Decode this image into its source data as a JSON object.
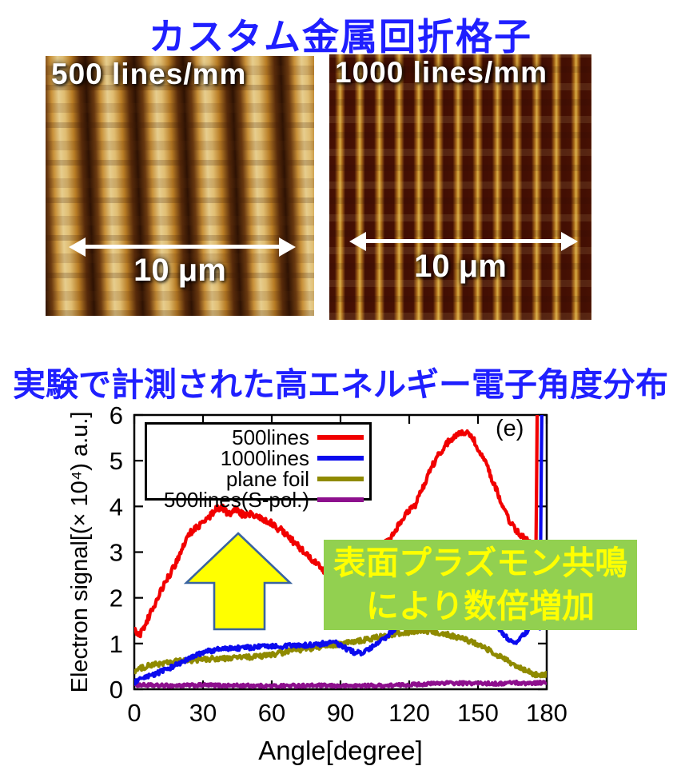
{
  "section1": {
    "title": "カスタム金属回折格子",
    "title_color": "#1f1fff"
  },
  "afm_images": [
    {
      "label": "500 lines/mm",
      "scale_label": "10 μm"
    },
    {
      "label": "1000 lines/mm",
      "scale_label": "10 μm"
    }
  ],
  "section2": {
    "title": "実験で計測された高エネルギー電子角度分布"
  },
  "chart_data": {
    "type": "line",
    "xlabel": "Angle[degree]",
    "ylabel": "Electron signal[(× 10⁴) a.u.]",
    "xlim": [
      0,
      180
    ],
    "ylim": [
      0,
      6
    ],
    "x_ticks": [
      0,
      30,
      60,
      90,
      120,
      150,
      180
    ],
    "y_ticks": [
      0,
      1,
      2,
      3,
      4,
      5,
      6
    ],
    "panel_label": "(e)",
    "legend_position": "top-left",
    "grid": false,
    "series": [
      {
        "name": "500lines",
        "color": "#f10000",
        "noise": 0.07,
        "points": [
          [
            0,
            1.3
          ],
          [
            2,
            1.17
          ],
          [
            4,
            1.32
          ],
          [
            6,
            1.55
          ],
          [
            8,
            1.76
          ],
          [
            10,
            1.97
          ],
          [
            12,
            2.18
          ],
          [
            14,
            2.38
          ],
          [
            16,
            2.56
          ],
          [
            18,
            2.74
          ],
          [
            20,
            2.97
          ],
          [
            22,
            3.2
          ],
          [
            24,
            3.4
          ],
          [
            26,
            3.5
          ],
          [
            28,
            3.56
          ],
          [
            30,
            3.63
          ],
          [
            32,
            3.73
          ],
          [
            34,
            3.84
          ],
          [
            36,
            3.95
          ],
          [
            38,
            4.0
          ],
          [
            40,
            3.88
          ],
          [
            42,
            3.86
          ],
          [
            44,
            3.93
          ],
          [
            46,
            3.88
          ],
          [
            48,
            3.79
          ],
          [
            50,
            3.83
          ],
          [
            52,
            3.81
          ],
          [
            54,
            3.79
          ],
          [
            56,
            3.73
          ],
          [
            58,
            3.69
          ],
          [
            60,
            3.64
          ],
          [
            62,
            3.54
          ],
          [
            64,
            3.49
          ],
          [
            66,
            3.4
          ],
          [
            68,
            3.3
          ],
          [
            70,
            3.2
          ],
          [
            72,
            3.1
          ],
          [
            74,
            3.0
          ],
          [
            76,
            2.9
          ],
          [
            78,
            2.8
          ],
          [
            80,
            2.72
          ],
          [
            82,
            2.62
          ],
          [
            84,
            2.54
          ],
          [
            86,
            2.47
          ],
          [
            88,
            2.43
          ],
          [
            90,
            2.48
          ],
          [
            92,
            2.58
          ],
          [
            94,
            2.68
          ],
          [
            96,
            2.78
          ],
          [
            98,
            2.86
          ],
          [
            100,
            2.94
          ],
          [
            102,
            3.0
          ],
          [
            104,
            3.05
          ],
          [
            106,
            3.1
          ],
          [
            108,
            3.15
          ],
          [
            110,
            3.21
          ],
          [
            112,
            3.3
          ],
          [
            114,
            3.48
          ],
          [
            116,
            3.63
          ],
          [
            118,
            3.8
          ],
          [
            120,
            3.93
          ],
          [
            122,
            3.97
          ],
          [
            124,
            4.18
          ],
          [
            126,
            4.42
          ],
          [
            128,
            4.65
          ],
          [
            130,
            4.88
          ],
          [
            132,
            5.06
          ],
          [
            134,
            5.22
          ],
          [
            136,
            5.36
          ],
          [
            138,
            5.46
          ],
          [
            140,
            5.52
          ],
          [
            142,
            5.57
          ],
          [
            144,
            5.62
          ],
          [
            146,
            5.58
          ],
          [
            148,
            5.47
          ],
          [
            150,
            5.28
          ],
          [
            152,
            5.1
          ],
          [
            154,
            4.88
          ],
          [
            156,
            4.62
          ],
          [
            158,
            4.36
          ],
          [
            160,
            4.12
          ],
          [
            162,
            3.88
          ],
          [
            164,
            3.66
          ],
          [
            166,
            3.5
          ],
          [
            168,
            3.4
          ],
          [
            170,
            3.32
          ],
          [
            172,
            3.22
          ],
          [
            174,
            3.1
          ],
          [
            175.3,
            3.02
          ],
          [
            175.9,
            6.3
          ],
          [
            176.5,
            6.3
          ]
        ]
      },
      {
        "name": "1000lines",
        "color": "#0b0bee",
        "noise": 0.05,
        "points": [
          [
            0,
            0.15
          ],
          [
            5,
            0.25
          ],
          [
            10,
            0.35
          ],
          [
            15,
            0.46
          ],
          [
            20,
            0.57
          ],
          [
            25,
            0.69
          ],
          [
            28,
            0.76
          ],
          [
            30,
            0.79
          ],
          [
            32,
            0.83
          ],
          [
            35,
            0.86
          ],
          [
            40,
            0.89
          ],
          [
            45,
            0.9
          ],
          [
            50,
            0.91
          ],
          [
            55,
            0.93
          ],
          [
            60,
            0.95
          ],
          [
            65,
            0.94
          ],
          [
            70,
            0.95
          ],
          [
            75,
            0.96
          ],
          [
            80,
            0.98
          ],
          [
            84,
            1.01
          ],
          [
            87,
            1.03
          ],
          [
            90,
            0.96
          ],
          [
            93,
            0.87
          ],
          [
            96,
            0.81
          ],
          [
            99,
            0.79
          ],
          [
            102,
            0.85
          ],
          [
            105,
            0.96
          ],
          [
            108,
            1.06
          ],
          [
            110,
            1.15
          ],
          [
            115,
            1.38
          ],
          [
            120,
            1.58
          ],
          [
            125,
            1.72
          ],
          [
            130,
            1.82
          ],
          [
            135,
            1.87
          ],
          [
            140,
            1.86
          ],
          [
            145,
            1.8
          ],
          [
            150,
            1.7
          ],
          [
            155,
            1.5
          ],
          [
            158,
            1.38
          ],
          [
            160,
            1.27
          ],
          [
            163,
            1.11
          ],
          [
            166,
            1.03
          ],
          [
            169,
            1.13
          ],
          [
            172,
            1.31
          ],
          [
            174,
            1.46
          ],
          [
            176,
            1.5
          ],
          [
            177,
            1.32
          ],
          [
            177.9,
            6.3
          ],
          [
            178.5,
            6.3
          ]
        ]
      },
      {
        "name": "plane foil",
        "color": "#8f8a00",
        "noise": 0.055,
        "points": [
          [
            0,
            0.4
          ],
          [
            5,
            0.5
          ],
          [
            10,
            0.55
          ],
          [
            15,
            0.58
          ],
          [
            20,
            0.62
          ],
          [
            25,
            0.63
          ],
          [
            30,
            0.65
          ],
          [
            35,
            0.67
          ],
          [
            40,
            0.67
          ],
          [
            45,
            0.7
          ],
          [
            50,
            0.7
          ],
          [
            55,
            0.72
          ],
          [
            60,
            0.76
          ],
          [
            65,
            0.8
          ],
          [
            70,
            0.85
          ],
          [
            75,
            0.88
          ],
          [
            80,
            0.92
          ],
          [
            85,
            0.95
          ],
          [
            90,
            1.0
          ],
          [
            95,
            1.03
          ],
          [
            100,
            1.08
          ],
          [
            105,
            1.12
          ],
          [
            110,
            1.18
          ],
          [
            115,
            1.22
          ],
          [
            120,
            1.25
          ],
          [
            125,
            1.27
          ],
          [
            128,
            1.27
          ],
          [
            130,
            1.26
          ],
          [
            135,
            1.22
          ],
          [
            140,
            1.15
          ],
          [
            145,
            1.08
          ],
          [
            150,
            0.98
          ],
          [
            155,
            0.85
          ],
          [
            160,
            0.7
          ],
          [
            165,
            0.55
          ],
          [
            170,
            0.42
          ],
          [
            174,
            0.34
          ],
          [
            177,
            0.3
          ],
          [
            180,
            0.33
          ]
        ]
      },
      {
        "name": "500lines(S-pol.)",
        "color": "#8d0f8d",
        "noise": 0.035,
        "points": [
          [
            0,
            0.1
          ],
          [
            10,
            0.08
          ],
          [
            20,
            0.08
          ],
          [
            30,
            0.09
          ],
          [
            40,
            0.08
          ],
          [
            50,
            0.08
          ],
          [
            60,
            0.07
          ],
          [
            70,
            0.08
          ],
          [
            80,
            0.08
          ],
          [
            90,
            0.07
          ],
          [
            100,
            0.08
          ],
          [
            110,
            0.08
          ],
          [
            120,
            0.1
          ],
          [
            130,
            0.12
          ],
          [
            135,
            0.14
          ],
          [
            140,
            0.13
          ],
          [
            150,
            0.13
          ],
          [
            160,
            0.12
          ],
          [
            165,
            0.15
          ],
          [
            170,
            0.13
          ],
          [
            175,
            0.14
          ],
          [
            180,
            0.15
          ]
        ]
      }
    ]
  },
  "annotations": {
    "box_line1": "表面プラズモン共鳴",
    "box_line2": "により数倍増加",
    "box_bg": "#92d050",
    "box_text_color": "#ffff00",
    "arrow_fill": "#ffff00",
    "arrow_stroke": "#3a64a0"
  }
}
